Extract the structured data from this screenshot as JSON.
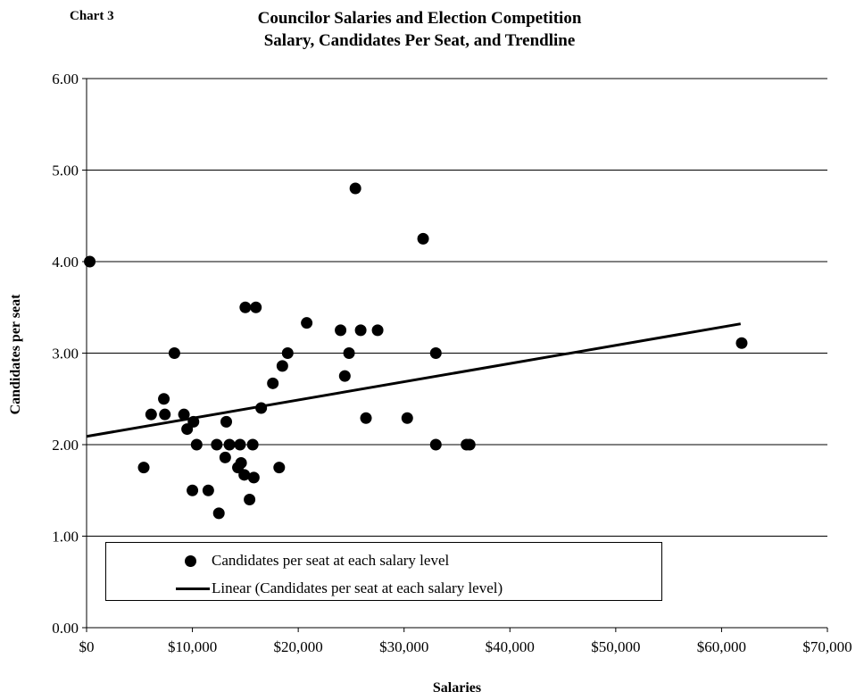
{
  "chart_data": {
    "type": "scatter",
    "chart_number": "Chart 3",
    "title": "Councilor Salaries and Election Competition",
    "subtitle": "Salary, Candidates Per Seat, and Trendline",
    "xlabel": "Salaries",
    "ylabel": "Candidates per seat",
    "xlim": [
      0,
      70000
    ],
    "ylim": [
      0,
      6
    ],
    "x_ticks": [
      0,
      10000,
      20000,
      30000,
      40000,
      50000,
      60000,
      70000
    ],
    "x_tick_labels": [
      "$0",
      "$10,000",
      "$20,000",
      "$30,000",
      "$40,000",
      "$50,000",
      "$60,000",
      "$70,000"
    ],
    "y_ticks": [
      0,
      1,
      2,
      3,
      4,
      5,
      6
    ],
    "y_tick_labels": [
      "0.00",
      "1.00",
      "2.00",
      "3.00",
      "4.00",
      "5.00",
      "6.00"
    ],
    "grid": "horizontal",
    "legend_position": "bottom-left",
    "series": [
      {
        "name": "Candidates per seat at each salary level",
        "type": "scatter",
        "color": "#000000",
        "points": [
          [
            300,
            4.0
          ],
          [
            5400,
            1.75
          ],
          [
            6100,
            2.33
          ],
          [
            7300,
            2.5
          ],
          [
            7400,
            2.33
          ],
          [
            8300,
            3.0
          ],
          [
            9200,
            2.33
          ],
          [
            9500,
            2.17
          ],
          [
            10000,
            1.5
          ],
          [
            10100,
            2.25
          ],
          [
            10400,
            2.0
          ],
          [
            11500,
            1.5
          ],
          [
            12300,
            2.0
          ],
          [
            12500,
            1.25
          ],
          [
            13100,
            1.86
          ],
          [
            13200,
            2.25
          ],
          [
            13500,
            2.0
          ],
          [
            14300,
            1.75
          ],
          [
            14500,
            2.0
          ],
          [
            14600,
            1.8
          ],
          [
            14900,
            1.67
          ],
          [
            15000,
            3.5
          ],
          [
            15400,
            1.4
          ],
          [
            15700,
            2.0
          ],
          [
            15800,
            1.64
          ],
          [
            16000,
            3.5
          ],
          [
            16500,
            2.4
          ],
          [
            17600,
            2.67
          ],
          [
            18200,
            1.75
          ],
          [
            18500,
            2.86
          ],
          [
            19000,
            3.0
          ],
          [
            20800,
            3.33
          ],
          [
            24000,
            3.25
          ],
          [
            24400,
            2.75
          ],
          [
            24800,
            3.0
          ],
          [
            25400,
            4.8
          ],
          [
            25900,
            3.25
          ],
          [
            26400,
            2.29
          ],
          [
            27500,
            3.25
          ],
          [
            30300,
            2.29
          ],
          [
            31800,
            4.25
          ],
          [
            33000,
            2.0
          ],
          [
            33000,
            3.0
          ],
          [
            35900,
            2.0
          ],
          [
            36200,
            2.0
          ],
          [
            61900,
            3.11
          ]
        ]
      },
      {
        "name": "Linear (Candidates per seat at each salary level)",
        "type": "line",
        "color": "#000000",
        "points": [
          [
            0,
            2.09
          ],
          [
            61800,
            3.32
          ]
        ]
      }
    ]
  }
}
